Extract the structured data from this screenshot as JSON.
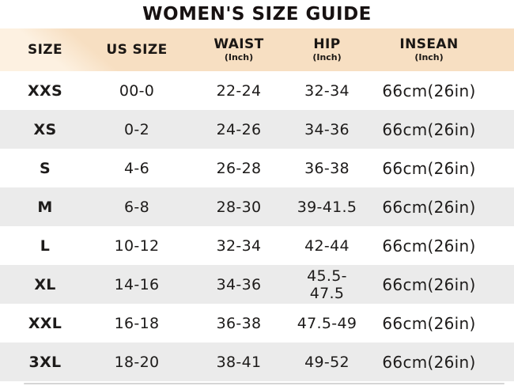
{
  "title": "WOMEN'S SIZE GUIDE",
  "table": {
    "columns": [
      {
        "label": "SIZE",
        "sub": ""
      },
      {
        "label": "US SIZE",
        "sub": ""
      },
      {
        "label": "WAIST",
        "sub": "(Inch)"
      },
      {
        "label": "HIP",
        "sub": "(Inch)"
      },
      {
        "label": "INSEAN",
        "sub": "(Inch)"
      }
    ],
    "rows": [
      {
        "size": "XXS",
        "us": "00-0",
        "waist": "22-24",
        "hip": "32-34",
        "inseam": "66cm(26in)"
      },
      {
        "size": "XS",
        "us": "0-2",
        "waist": "24-26",
        "hip": "34-36",
        "inseam": "66cm(26in)"
      },
      {
        "size": "S",
        "us": "4-6",
        "waist": "26-28",
        "hip": "36-38",
        "inseam": "66cm(26in)"
      },
      {
        "size": "M",
        "us": "6-8",
        "waist": "28-30",
        "hip": "39-41.5",
        "inseam": "66cm(26in)"
      },
      {
        "size": "L",
        "us": "10-12",
        "waist": "32-34",
        "hip": "42-44",
        "inseam": "66cm(26in)"
      },
      {
        "size": "XL",
        "us": "14-16",
        "waist": "34-36",
        "hip": "45.5-47.5",
        "inseam": "66cm(26in)"
      },
      {
        "size": "XXL",
        "us": "16-18",
        "waist": "36-38",
        "hip": "47.5-49",
        "inseam": "66cm(26in)"
      },
      {
        "size": "3XL",
        "us": "18-20",
        "waist": "38-41",
        "hip": "49-52",
        "inseam": "66cm(26in)"
      }
    ]
  },
  "colors": {
    "header_bg": "#f7dfc2",
    "header_bg_highlight": "#fdf1e1",
    "row_bg": "#ffffff",
    "row_alt_bg": "#ebebeb",
    "text": "#1d1b1a",
    "title_text": "#171111",
    "divider": "#d6d6d6"
  }
}
